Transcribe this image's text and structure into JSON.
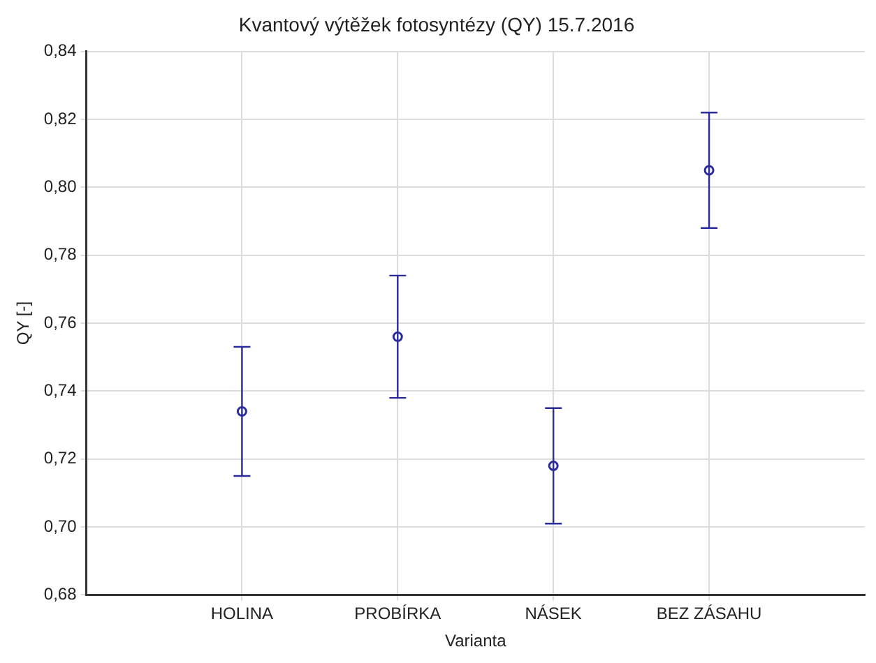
{
  "chart_data": {
    "type": "scatter",
    "title": "Kvantový výtěžek fotosyntézy (QY) 15.7.2016",
    "xlabel": "Varianta",
    "ylabel": "QY [-]",
    "categories": [
      "HOLINA",
      "PROBÍRKA",
      "NÁSEK",
      "BEZ ZÁSAHU"
    ],
    "series": [
      {
        "color": "#2b2b9c",
        "values": [
          0.734,
          0.756,
          0.718,
          0.805
        ],
        "errors": [
          0.019,
          0.018,
          0.017,
          0.017
        ]
      }
    ],
    "ylim": [
      0.68,
      0.84
    ],
    "yticks": [
      {
        "value": 0.68,
        "label": "0,68"
      },
      {
        "value": 0.7,
        "label": "0,70"
      },
      {
        "value": 0.72,
        "label": "0,72"
      },
      {
        "value": 0.74,
        "label": "0,74"
      },
      {
        "value": 0.76,
        "label": "0,76"
      },
      {
        "value": 0.78,
        "label": "0,78"
      },
      {
        "value": 0.8,
        "label": "0,80"
      },
      {
        "value": 0.82,
        "label": "0,82"
      },
      {
        "value": 0.84,
        "label": "0,84"
      }
    ],
    "grid": true,
    "legend": false,
    "marker": "circle"
  }
}
